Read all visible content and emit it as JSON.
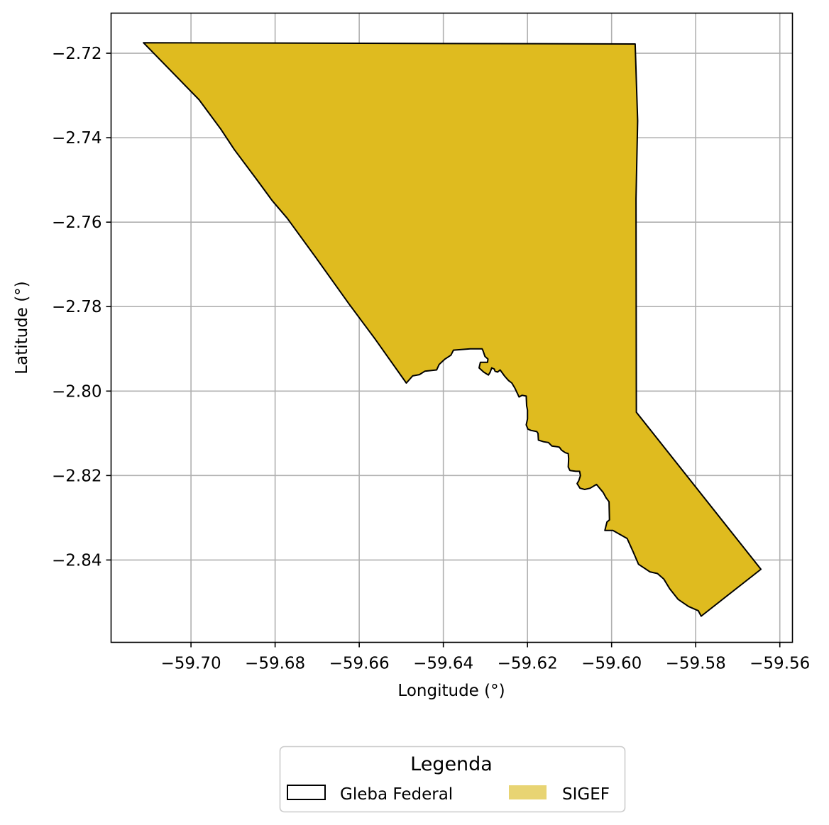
{
  "chart_data": {
    "type": "map",
    "xlabel": "Longitude (°)",
    "ylabel": "Latitude (°)",
    "xlim": [
      -59.719,
      -59.557
    ],
    "ylim": [
      -2.8595,
      -2.7105
    ],
    "xticks": [
      -59.7,
      -59.68,
      -59.66,
      -59.64,
      -59.62,
      -59.6,
      -59.58,
      -59.56
    ],
    "xtick_labels": [
      "−59.70",
      "−59.68",
      "−59.66",
      "−59.64",
      "−59.62",
      "−59.60",
      "−59.58",
      "−59.56"
    ],
    "yticks": [
      -2.72,
      -2.74,
      -2.76,
      -2.78,
      -2.8,
      -2.82,
      -2.84
    ],
    "ytick_labels": [
      "−2.72",
      "−2.74",
      "−2.76",
      "−2.78",
      "−2.80",
      "−2.82",
      "−2.84"
    ],
    "grid": true,
    "layers": [
      {
        "name": "Gleba Federal",
        "fill": "none",
        "edge": "#000000"
      },
      {
        "name": "SIGEF",
        "fill": "#dfbb1f",
        "edge": "#000000"
      }
    ],
    "polygon": [
      [
        -59.7113,
        -2.7175
      ],
      [
        -59.5944,
        -2.7178
      ],
      [
        -59.5938,
        -2.736
      ],
      [
        -59.5942,
        -2.7545
      ],
      [
        -59.5941,
        -2.805
      ],
      [
        -59.5645,
        -2.8422
      ],
      [
        -59.5787,
        -2.8533
      ],
      [
        -59.5794,
        -2.852
      ],
      [
        -59.5817,
        -2.851
      ],
      [
        -59.5842,
        -2.8493
      ],
      [
        -59.5862,
        -2.8468
      ],
      [
        -59.5876,
        -2.8445
      ],
      [
        -59.5891,
        -2.8432
      ],
      [
        -59.5909,
        -2.8428
      ],
      [
        -59.5921,
        -2.842
      ],
      [
        -59.5936,
        -2.841
      ],
      [
        -59.5949,
        -2.838
      ],
      [
        -59.5963,
        -2.8349
      ],
      [
        -59.5979,
        -2.834
      ],
      [
        -59.5997,
        -2.833
      ],
      [
        -59.6016,
        -2.833
      ],
      [
        -59.6011,
        -2.831
      ],
      [
        -59.6005,
        -2.8305
      ],
      [
        -59.6006,
        -2.8262
      ],
      [
        -59.6013,
        -2.8253
      ],
      [
        -59.602,
        -2.824
      ],
      [
        -59.6036,
        -2.8221
      ],
      [
        -59.6051,
        -2.823
      ],
      [
        -59.6064,
        -2.8233
      ],
      [
        -59.6075,
        -2.823
      ],
      [
        -59.6082,
        -2.8219
      ],
      [
        -59.6078,
        -2.8212
      ],
      [
        -59.6074,
        -2.82
      ],
      [
        -59.6076,
        -2.819
      ],
      [
        -59.6085,
        -2.819
      ],
      [
        -59.6099,
        -2.8188
      ],
      [
        -59.6103,
        -2.818
      ],
      [
        -59.6102,
        -2.816
      ],
      [
        -59.6103,
        -2.8148
      ],
      [
        -59.611,
        -2.8146
      ],
      [
        -59.6119,
        -2.814
      ],
      [
        -59.6124,
        -2.8133
      ],
      [
        -59.6128,
        -2.8132
      ],
      [
        -59.6142,
        -2.813
      ],
      [
        -59.615,
        -2.8122
      ],
      [
        -59.6162,
        -2.812
      ],
      [
        -59.6174,
        -2.8116
      ],
      [
        -59.6175,
        -2.81
      ],
      [
        -59.6178,
        -2.8096
      ],
      [
        -59.6192,
        -2.8093
      ],
      [
        -59.6199,
        -2.809
      ],
      [
        -59.6203,
        -2.808
      ],
      [
        -59.62,
        -2.8066
      ],
      [
        -59.62,
        -2.8045
      ],
      [
        -59.6202,
        -2.8035
      ],
      [
        -59.6203,
        -2.8012
      ],
      [
        -59.6213,
        -2.801
      ],
      [
        -59.622,
        -2.8014
      ],
      [
        -59.623,
        -2.7993
      ],
      [
        -59.6237,
        -2.7981
      ],
      [
        -59.6245,
        -2.7975
      ],
      [
        -59.6254,
        -2.7965
      ],
      [
        -59.6265,
        -2.795
      ],
      [
        -59.6271,
        -2.7955
      ],
      [
        -59.6277,
        -2.7953
      ],
      [
        -59.6279,
        -2.7948
      ],
      [
        -59.6285,
        -2.7945
      ],
      [
        -59.6289,
        -2.7956
      ],
      [
        -59.6293,
        -2.7962
      ],
      [
        -59.6304,
        -2.7955
      ],
      [
        -59.6315,
        -2.7945
      ],
      [
        -59.6312,
        -2.7932
      ],
      [
        -59.6295,
        -2.7932
      ],
      [
        -59.6294,
        -2.7924
      ],
      [
        -59.6301,
        -2.7918
      ],
      [
        -59.6306,
        -2.7904
      ],
      [
        -59.6308,
        -2.79
      ],
      [
        -59.6336,
        -2.79
      ],
      [
        -59.6376,
        -2.7903
      ],
      [
        -59.6382,
        -2.7915
      ],
      [
        -59.6397,
        -2.7925
      ],
      [
        -59.641,
        -2.7937
      ],
      [
        -59.6416,
        -2.795
      ],
      [
        -59.6444,
        -2.7953
      ],
      [
        -59.6457,
        -2.7961
      ],
      [
        -59.6473,
        -2.7964
      ],
      [
        -59.6488,
        -2.7981
      ],
      [
        -59.6562,
        -2.7877
      ],
      [
        -59.6624,
        -2.7794
      ],
      [
        -59.6703,
        -2.7684
      ],
      [
        -59.6771,
        -2.7591
      ],
      [
        -59.6807,
        -2.7549
      ],
      [
        -59.6843,
        -2.75
      ],
      [
        -59.6897,
        -2.7428
      ],
      [
        -59.6929,
        -2.738
      ],
      [
        -59.6981,
        -2.731
      ],
      [
        -59.7113,
        -2.7175
      ]
    ]
  },
  "legend": {
    "title": "Legenda",
    "items": [
      {
        "label": "Gleba Federal",
        "type": "outline",
        "color": "#000000"
      },
      {
        "label": "SIGEF",
        "type": "fill",
        "color": "#e8d473"
      }
    ]
  }
}
